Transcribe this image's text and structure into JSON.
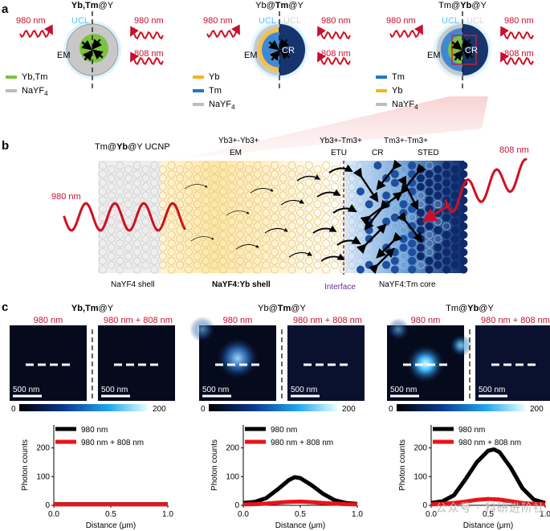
{
  "panel_a": {
    "letter": "a",
    "columns": [
      {
        "title_pre": "",
        "title_bold": "Yb,Tm",
        "title_post": "@Y",
        "wavelength_left": "980 nm",
        "wavelength_right_top": "980 nm",
        "wavelength_right_bottom": "808 nm",
        "label_em": "EM",
        "label_ucl_left": "UCL",
        "label_ucl_right": "",
        "legend": [
          {
            "name": "Yb,Tm",
            "color": "#7cc242"
          },
          {
            "name": "NaYF4",
            "color": "#bdbdbd"
          }
        ]
      },
      {
        "title_pre": "Yb@",
        "title_bold": "Tm",
        "title_post": "@Y",
        "wavelength_left": "980 nm",
        "wavelength_right_top": "980 nm",
        "wavelength_right_bottom": "808 nm",
        "label_em": "EM",
        "label_ucl_left": "UCL",
        "label_ucl_right": "UCL",
        "label_cr": "CR",
        "legend": [
          {
            "name": "Yb",
            "color": "#f5b41c"
          },
          {
            "name": "Tm",
            "color": "#1f78c8"
          },
          {
            "name": "NaYF4",
            "color": "#bdbdbd"
          }
        ]
      },
      {
        "title_pre": "Tm@",
        "title_bold": "Yb",
        "title_post": "@Y",
        "wavelength_left": "980 nm",
        "wavelength_right_top": "980 nm",
        "wavelength_right_bottom": "808 nm",
        "label_em": "EM",
        "label_ucl_left": "UCL",
        "label_ucl_right": "UCL",
        "label_cr": "CR",
        "legend": [
          {
            "name": "Tm",
            "color": "#1f78c8"
          },
          {
            "name": "Yb",
            "color": "#f5b41c"
          },
          {
            "name": "NaYF4",
            "color": "#bdbdbd"
          }
        ]
      }
    ]
  },
  "panel_b": {
    "letter": "b",
    "title_pre": "Tm@",
    "title_bold": "Yb",
    "title_post": "@Y UCNP",
    "label_yb_yb": "Yb3+-Yb3+",
    "label_em": "EM",
    "label_yb_tm": "Yb3+-Tm3+",
    "label_etu": "ETU",
    "label_tm_tm": "Tm3+-Tm3+",
    "label_cr": "CR",
    "label_sted": "STED",
    "wavelength_left": "980 nm",
    "wavelength_right": "808 nm",
    "bottom_shell": "NaYF4 shell",
    "bottom_ybshell": "NaYF4:Yb shell",
    "bottom_interface": "Interface",
    "bottom_core": "NaYF4:Tm core"
  },
  "panel_c": {
    "letter": "c",
    "groups": [
      {
        "title_pre": "",
        "title_bold": "Yb,Tm",
        "title_post": "@Y"
      },
      {
        "title_pre": "Yb@",
        "title_bold": "Tm",
        "title_post": "@Y"
      },
      {
        "title_pre": "Tm@",
        "title_bold": "Yb",
        "title_post": "@Y"
      }
    ],
    "image_label_left": "980 nm",
    "image_label_right": "980 nm + 808 nm",
    "scale_bar": "500 nm",
    "colorbar_min": "0",
    "colorbar_max": "200",
    "legend_black": "980 nm",
    "legend_red": "980 nm + 808 nm",
    "ylabel": "Photon counts",
    "xlabel": "Distance (μm)"
  },
  "chart_data": [
    {
      "type": "line",
      "xlabel": "Distance (μm)",
      "ylabel": "Photon counts",
      "xlim": [
        0,
        1
      ],
      "ylim": [
        0,
        280
      ],
      "xticks": [
        "0.0",
        "0.5",
        "1.0"
      ],
      "yticks": [
        "0",
        "100",
        "200"
      ],
      "series": [
        {
          "name": "980 nm",
          "color": "#000000",
          "x": [
            0,
            0.1,
            0.2,
            0.3,
            0.4,
            0.5,
            0.6,
            0.7,
            0.8,
            0.9,
            1.0
          ],
          "values": [
            4,
            4,
            4,
            4,
            4,
            4,
            4,
            4,
            4,
            4,
            4
          ]
        },
        {
          "name": "980 nm + 808 nm",
          "color": "#e8141b",
          "x": [
            0,
            0.1,
            0.2,
            0.3,
            0.4,
            0.5,
            0.6,
            0.7,
            0.8,
            0.9,
            1.0
          ],
          "values": [
            3,
            3,
            3,
            3,
            3,
            3,
            3,
            3,
            3,
            3,
            3
          ]
        }
      ]
    },
    {
      "type": "line",
      "xlabel": "Distance (μm)",
      "ylabel": "Photon counts",
      "xlim": [
        0,
        1
      ],
      "ylim": [
        0,
        280
      ],
      "xticks": [
        "0.0",
        "0.5",
        "1.0"
      ],
      "yticks": [
        "0",
        "100",
        "200"
      ],
      "series": [
        {
          "name": "980 nm",
          "color": "#000000",
          "x": [
            0,
            0.1,
            0.2,
            0.3,
            0.4,
            0.45,
            0.5,
            0.6,
            0.7,
            0.8,
            0.9,
            1.0
          ],
          "values": [
            8,
            12,
            25,
            55,
            88,
            98,
            95,
            70,
            40,
            18,
            8,
            5
          ]
        },
        {
          "name": "980 nm + 808 nm",
          "color": "#e8141b",
          "x": [
            0,
            0.1,
            0.2,
            0.3,
            0.4,
            0.5,
            0.6,
            0.7,
            0.8,
            0.9,
            1.0
          ],
          "values": [
            3,
            4,
            6,
            9,
            12,
            13,
            11,
            8,
            6,
            4,
            3
          ]
        }
      ]
    },
    {
      "type": "line",
      "xlabel": "Distance (μm)",
      "ylabel": "Photon counts",
      "xlim": [
        0,
        1
      ],
      "ylim": [
        0,
        280
      ],
      "xticks": [
        "0.0",
        "0.5",
        "1.0"
      ],
      "yticks": [
        "0",
        "100",
        "200"
      ],
      "series": [
        {
          "name": "980 nm",
          "color": "#000000",
          "x": [
            0,
            0.1,
            0.2,
            0.3,
            0.4,
            0.5,
            0.55,
            0.6,
            0.7,
            0.8,
            0.9,
            1.0
          ],
          "values": [
            8,
            14,
            35,
            90,
            150,
            190,
            195,
            185,
            130,
            60,
            20,
            8
          ]
        },
        {
          "name": "980 nm + 808 nm",
          "color": "#e8141b",
          "x": [
            0,
            0.1,
            0.2,
            0.3,
            0.4,
            0.5,
            0.6,
            0.7,
            0.8,
            0.9,
            1.0
          ],
          "values": [
            3,
            5,
            8,
            13,
            19,
            22,
            20,
            14,
            8,
            5,
            3
          ]
        }
      ]
    }
  ],
  "watermark": "公众号 · 科研进阶社"
}
